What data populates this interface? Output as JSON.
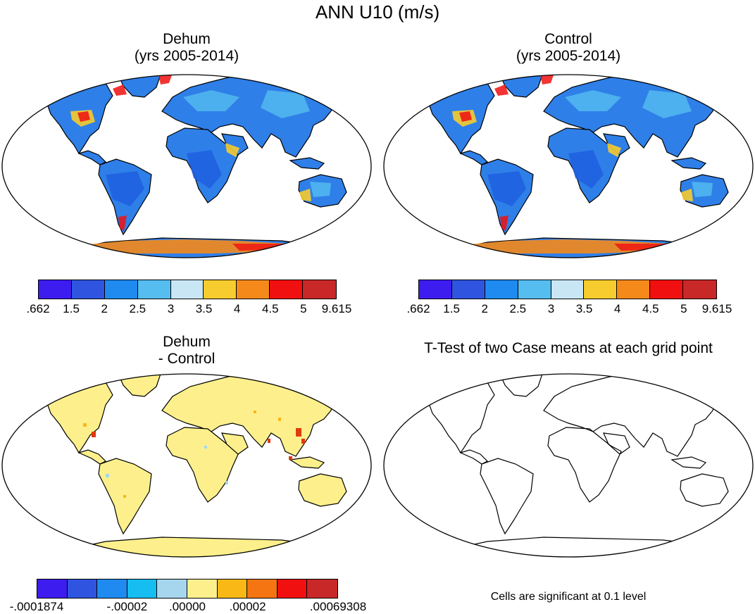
{
  "figure": {
    "title": "ANN U10 (m/s)"
  },
  "panels": {
    "dehum": {
      "title_line1": "Dehum",
      "title_line2": "(yrs 2005-2014)"
    },
    "control": {
      "title_line1": "Control",
      "title_line2": "(yrs 2005-2014)"
    },
    "diff": {
      "title_line1": "Dehum",
      "title_line2": "- Control"
    },
    "ttest": {
      "title": "T-Test of two Case means at each grid point",
      "note": "Cells are significant at 0.1 level"
    }
  },
  "colorbars": {
    "wind": {
      "colors": [
        "#3d1cf0",
        "#2f55e0",
        "#1f8bf0",
        "#55bdf0",
        "#c9e6f5",
        "#f7cc2e",
        "#f58a1a",
        "#f01010",
        "#c82828"
      ],
      "labels": [
        ".662",
        "1.5",
        "2",
        "2.5",
        "3",
        "3.5",
        "4",
        "4.5",
        "5",
        "9.615"
      ]
    },
    "diff": {
      "colors": [
        "#3d1cf0",
        "#2f55e0",
        "#1f8bf0",
        "#15bdf0",
        "#a6d6ee",
        "#fdf08c",
        "#f9b816",
        "#f57512",
        "#f01010",
        "#c82828"
      ],
      "labels": [
        "-.0001874",
        "-.00002",
        ".00000",
        ".00002",
        ".00069308"
      ]
    }
  },
  "colors": {
    "ocean": "#ffffff",
    "coast": "#000000",
    "diff_land": "#fdf08c",
    "hot": "#e03a10"
  }
}
